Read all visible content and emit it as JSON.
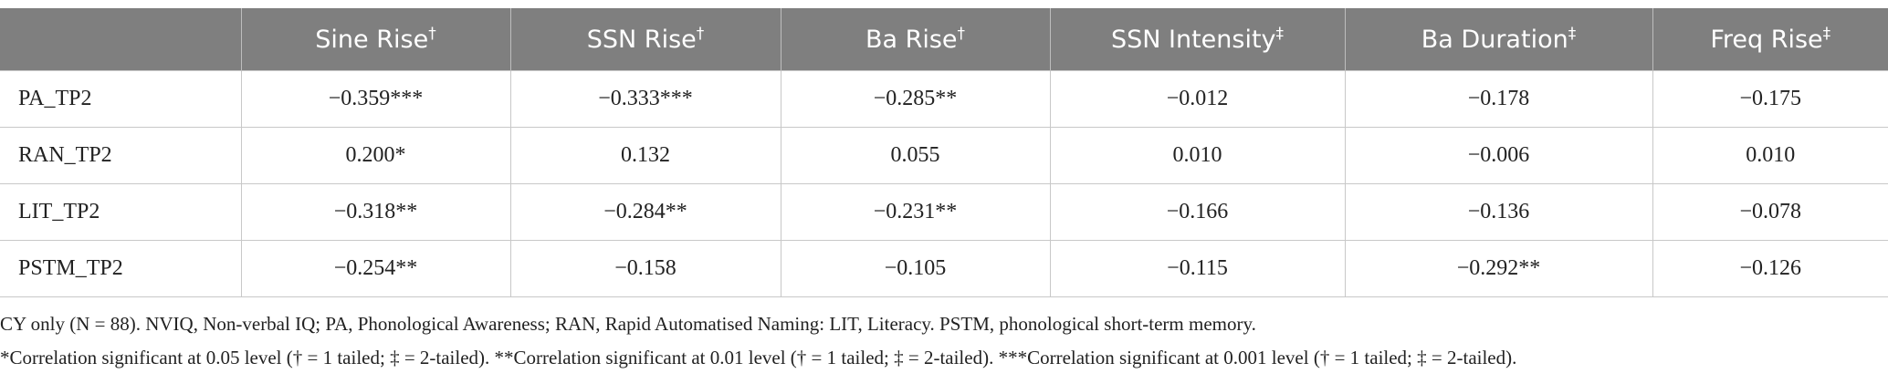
{
  "table": {
    "headers": [
      {
        "text": "Sine Rise",
        "sup": "†"
      },
      {
        "text": "SSN Rise",
        "sup": "†"
      },
      {
        "text": "Ba Rise",
        "sup": "†"
      },
      {
        "text": "SSN Intensity",
        "sup": "‡"
      },
      {
        "text": "Ba Duration",
        "sup": "‡"
      },
      {
        "text": "Freq Rise",
        "sup": "‡"
      }
    ],
    "rows": [
      [
        "PA_TP2",
        "−0.359***",
        "−0.333***",
        "−0.285**",
        "−0.012",
        "−0.178",
        "−0.175"
      ],
      [
        "RAN_TP2",
        "0.200*",
        "0.132",
        "0.055",
        "0.010",
        "−0.006",
        "0.010"
      ],
      [
        "LIT_TP2",
        "−0.318**",
        "−0.284**",
        "−0.231**",
        "−0.166",
        "−0.136",
        "−0.078"
      ],
      [
        "PSTM_TP2",
        "−0.254**",
        "−0.158",
        "−0.105",
        "−0.115",
        "−0.292**",
        "−0.126"
      ]
    ]
  },
  "footnotes": [
    "CY only (N = 88). NVIQ, Non-verbal IQ; PA, Phonological Awareness; RAN, Rapid Automatised Naming: LIT, Literacy. PSTM, phonological short-term memory.",
    "*Correlation significant at 0.05 level († = 1 tailed; ‡ = 2-tailed). **Correlation significant at 0.01 level († = 1 tailed; ‡ = 2-tailed). ***Correlation significant at 0.001 level († = 1 tailed; ‡ = 2-tailed)."
  ]
}
